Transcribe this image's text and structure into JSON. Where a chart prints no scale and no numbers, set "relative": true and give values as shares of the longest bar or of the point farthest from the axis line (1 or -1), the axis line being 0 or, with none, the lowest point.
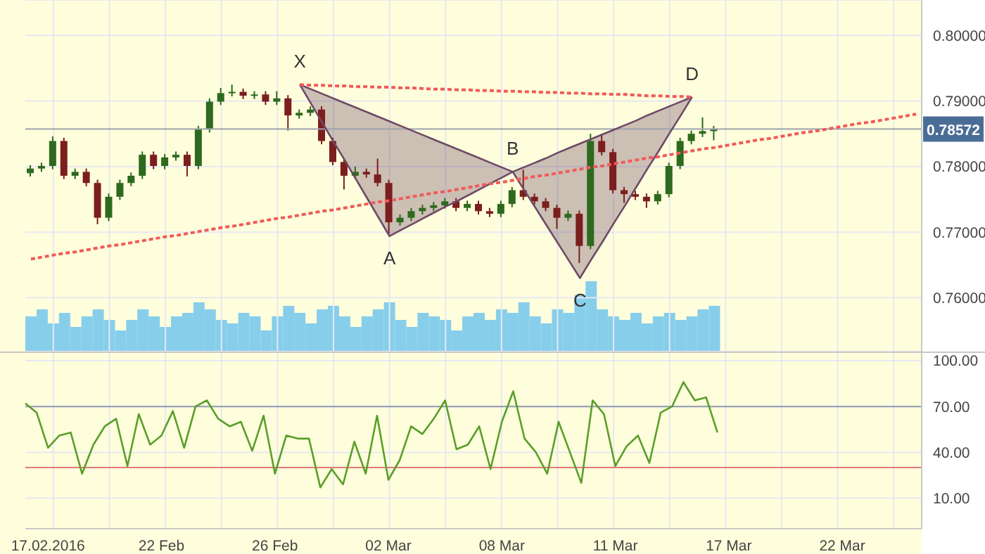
{
  "chart_data": [
    {
      "type": "candlestick",
      "ylim": [
        0.7518,
        0.8054
      ],
      "grid": true,
      "tick_labels": "y",
      "categories": [
        null,
        null,
        null,
        null,
        null,
        null,
        null,
        null,
        null,
        null,
        null,
        null,
        null,
        null,
        null,
        null,
        null,
        null,
        null,
        null,
        null,
        null,
        null,
        null,
        null,
        null,
        null,
        null,
        null,
        null,
        null,
        null,
        null,
        null,
        null,
        null,
        null,
        null,
        null,
        null,
        null,
        null,
        null,
        null,
        null,
        null,
        null,
        null,
        null,
        null,
        null,
        null,
        null,
        null,
        null,
        null,
        null,
        null,
        null,
        null,
        null,
        null,
        null,
        null,
        null,
        null,
        null,
        null,
        null,
        null,
        null,
        null,
        null,
        null,
        null,
        null,
        null,
        null,
        null,
        null
      ],
      "yticks": [
        {
          "value": 0.76,
          "label": "0.76000"
        },
        {
          "value": 0.77,
          "label": "0.77000"
        },
        {
          "value": 0.78,
          "label": "0.78000"
        },
        {
          "value": 0.79,
          "label": "0.79000"
        },
        {
          "value": 0.8,
          "label": "0.80000"
        }
      ],
      "ref_lines": [
        {
          "axis": "y",
          "value": 0.78572,
          "label": "0.78572",
          "color": "#9ea4ad"
        }
      ],
      "series": [
        {
          "type": "line",
          "color": "#6e4a66",
          "values": [
            null,
            null,
            null,
            null,
            null,
            null,
            null,
            null,
            null,
            null,
            null,
            null,
            null,
            null,
            null,
            null,
            null,
            null,
            null,
            null,
            null,
            null,
            null,
            null,
            0.7925,
            0.7896,
            0.7867,
            0.7838,
            0.781,
            0.7781,
            0.7752,
            0.7723,
            0.7694,
            0.7703,
            0.7712,
            0.7721,
            0.773,
            0.7739,
            0.7747,
            0.7756,
            0.7765,
            0.7774,
            0.7783,
            0.7792,
            0.7765,
            0.7738,
            0.7711,
            0.7684,
            0.7657,
            0.763,
            0.7658,
            0.7685,
            0.7713,
            0.774,
            0.7768,
            0.7796,
            0.7823,
            0.7851,
            0.7878,
            0.7906,
            null,
            null,
            null,
            null,
            null,
            null,
            null,
            null,
            null,
            null,
            null,
            null,
            null,
            null,
            null,
            null,
            null,
            null,
            null,
            null
          ],
          "lower": [
            null,
            null,
            null,
            null,
            null,
            null,
            null,
            null,
            null,
            null,
            null,
            null,
            null,
            null,
            null,
            null,
            null,
            null,
            null,
            null,
            null,
            null,
            null,
            null,
            0.7925,
            0.7896,
            0.7867,
            0.7838,
            0.781,
            0.7781,
            0.7752,
            0.7723,
            0.7694,
            0.7703,
            0.7712,
            0.7721,
            0.773,
            0.7739,
            0.7747,
            0.7756,
            0.7765,
            0.7774,
            0.7783,
            0.7792,
            0.7765,
            0.7738,
            0.7711,
            0.7684,
            0.7657,
            0.763,
            0.7658,
            0.7685,
            0.7713,
            0.774,
            0.7768,
            0.7796,
            0.7823,
            0.7851,
            0.7878,
            0.7906,
            null,
            null,
            null,
            null,
            null,
            null,
            null,
            null,
            null,
            null,
            null,
            null,
            null,
            null,
            null,
            null,
            null,
            null,
            null,
            null
          ],
          "upper": [
            null,
            null,
            null,
            null,
            null,
            null,
            null,
            null,
            null,
            null,
            null,
            null,
            null,
            null,
            null,
            null,
            null,
            null,
            null,
            null,
            null,
            null,
            null,
            null,
            0.7925,
            0.7918,
            0.7911,
            0.7904,
            0.7897,
            0.789,
            0.7883,
            0.7876,
            0.7869,
            0.7862,
            0.7855,
            0.7848,
            0.7841,
            0.7834,
            0.7827,
            0.782,
            0.7813,
            0.7806,
            0.7799,
            0.7792,
            0.7799,
            0.7806,
            0.7813,
            0.7821,
            0.7828,
            0.7835,
            0.7842,
            0.7849,
            0.7856,
            0.7863,
            0.787,
            0.7878,
            0.7885,
            0.7892,
            0.7899,
            0.7906,
            null,
            null,
            null,
            null,
            null,
            null,
            null,
            null,
            null,
            null,
            null,
            null,
            null,
            null,
            null,
            null,
            null,
            null,
            null,
            null
          ],
          "value_labels": [
            null,
            null,
            null,
            null,
            null,
            null,
            null,
            null,
            null,
            null,
            null,
            null,
            null,
            null,
            null,
            null,
            null,
            null,
            null,
            null,
            null,
            null,
            null,
            null,
            "X",
            null,
            null,
            null,
            null,
            null,
            null,
            null,
            "A",
            null,
            null,
            null,
            null,
            null,
            null,
            null,
            null,
            null,
            null,
            "B",
            null,
            null,
            null,
            null,
            null,
            "C",
            null,
            null,
            null,
            null,
            null,
            null,
            null,
            null,
            null,
            "D",
            null,
            null,
            null,
            null,
            null,
            null,
            null,
            null,
            null,
            null,
            null,
            null,
            null,
            null,
            null,
            null,
            null,
            null,
            null,
            null
          ]
        },
        {
          "type": "line",
          "color": "#6e4a66",
          "values": [
            null,
            null,
            null,
            null,
            null,
            null,
            null,
            null,
            null,
            null,
            null,
            null,
            null,
            null,
            null,
            null,
            null,
            null,
            null,
            null,
            null,
            null,
            null,
            null,
            0.7925,
            0.7918,
            0.7911,
            0.7904,
            0.7897,
            0.789,
            0.7883,
            0.7876,
            0.7869,
            0.7862,
            0.7855,
            0.7848,
            0.7841,
            0.7834,
            0.7827,
            0.782,
            0.7813,
            0.7806,
            0.7799,
            0.7792,
            0.7799,
            0.7806,
            0.7813,
            0.7821,
            0.7828,
            0.7835,
            0.7842,
            0.7849,
            0.7856,
            0.7863,
            0.787,
            0.7878,
            0.7885,
            0.7892,
            0.7899,
            0.7906,
            null,
            null,
            null,
            null,
            null,
            null,
            null,
            null,
            null,
            null,
            null,
            null,
            null,
            null,
            null,
            null,
            null,
            null,
            null,
            null
          ]
        },
        {
          "type": "line",
          "color": "#f05a5a",
          "line_style": "dotted",
          "values": [
            0.7659,
            0.7662,
            0.7665,
            0.7668,
            0.767,
            0.7673,
            0.7676,
            0.7679,
            0.7681,
            0.7684,
            0.7687,
            0.769,
            0.7693,
            0.7695,
            0.7698,
            0.7701,
            0.7704,
            0.7707,
            0.7709,
            0.7712,
            0.7715,
            0.7718,
            0.7721,
            0.7723,
            0.7726,
            0.7729,
            0.7732,
            0.7734,
            0.7737,
            0.774,
            0.7743,
            0.7746,
            0.7748,
            0.7751,
            0.7754,
            0.7757,
            0.776,
            0.7762,
            0.7765,
            0.7768,
            0.7771,
            0.7774,
            0.7776,
            0.7779,
            0.7782,
            0.7785,
            0.7787,
            0.779,
            0.7793,
            0.7796,
            0.7799,
            0.7801,
            0.7804,
            0.7807,
            0.781,
            0.7813,
            0.7815,
            0.7818,
            0.7821,
            0.7824,
            0.7827,
            0.7829,
            0.7832,
            0.7835,
            0.7838,
            0.7841,
            0.7843,
            0.7846,
            0.7849,
            0.7852,
            0.7854,
            0.7857,
            0.786,
            0.7863,
            0.7866,
            0.7868,
            0.7871,
            0.7874,
            0.7877,
            0.788
          ]
        },
        {
          "type": "line",
          "color": "#f05a5a",
          "line_style": "dotted",
          "values": [
            null,
            null,
            null,
            null,
            null,
            null,
            null,
            null,
            null,
            null,
            null,
            null,
            null,
            null,
            null,
            null,
            null,
            null,
            null,
            null,
            null,
            null,
            null,
            null,
            0.7925,
            0.7924,
            0.7924,
            0.7923,
            0.7923,
            0.7922,
            0.7922,
            0.7921,
            0.7921,
            0.792,
            0.792,
            0.7919,
            0.7918,
            0.7918,
            0.7917,
            0.7917,
            0.7916,
            0.7916,
            0.7915,
            0.7915,
            0.7914,
            0.7914,
            0.7913,
            0.7913,
            0.7912,
            0.7912,
            0.7911,
            0.7911,
            0.791,
            0.791,
            0.7909,
            0.7908,
            0.7908,
            0.7907,
            0.7907,
            0.7906,
            null,
            null,
            null,
            null,
            null,
            null,
            null,
            null,
            null,
            null,
            null,
            null,
            null,
            null,
            null,
            null,
            null,
            null,
            null,
            null
          ]
        },
        {
          "ohlc": [
            [
              0.779,
              0.7802,
              0.7785,
              0.7797
            ],
            [
              0.7797,
              0.7806,
              0.7792,
              0.7801
            ],
            [
              0.7801,
              0.7846,
              0.7796,
              0.7839
            ],
            [
              0.7839,
              0.7844,
              0.7781,
              0.7786
            ],
            [
              0.7786,
              0.7797,
              0.7781,
              0.7792
            ],
            [
              0.7792,
              0.7797,
              0.777,
              0.7775
            ],
            [
              0.7775,
              0.778,
              0.7712,
              0.7722
            ],
            [
              0.7722,
              0.7759,
              0.7717,
              0.7754
            ],
            [
              0.7754,
              0.778,
              0.7749,
              0.7775
            ],
            [
              0.7775,
              0.7791,
              0.777,
              0.7786
            ],
            [
              0.7786,
              0.7823,
              0.7781,
              0.7818
            ],
            [
              0.7818,
              0.7823,
              0.7796,
              0.7801
            ],
            [
              0.7801,
              0.7819,
              0.7796,
              0.7814
            ],
            [
              0.7814,
              0.7823,
              0.7809,
              0.7818
            ],
            [
              0.7818,
              0.7823,
              0.7785,
              0.7801
            ],
            [
              0.7801,
              0.7862,
              0.7796,
              0.7857
            ],
            [
              0.7857,
              0.7904,
              0.7852,
              0.7899
            ],
            [
              0.7899,
              0.792,
              0.7894,
              0.7912
            ],
            [
              0.7912,
              0.7925,
              0.7907,
              0.7914
            ],
            [
              0.7914,
              0.7919,
              0.7903,
              0.7908
            ],
            [
              0.7908,
              0.7915,
              0.7903,
              0.791
            ],
            [
              0.791,
              0.7915,
              0.7894,
              0.7899
            ],
            [
              0.7899,
              0.7915,
              0.7894,
              0.7904
            ],
            [
              0.7904,
              0.7909,
              0.7855,
              0.7878
            ],
            [
              0.7878,
              0.7887,
              0.7873,
              0.7882
            ],
            [
              0.7882,
              0.7892,
              0.7877,
              0.7887
            ],
            [
              0.7887,
              0.7892,
              0.7834,
              0.7839
            ],
            [
              0.7839,
              0.7844,
              0.7802,
              0.7807
            ],
            [
              0.7807,
              0.7812,
              0.7765,
              0.7786
            ],
            [
              0.7786,
              0.78,
              0.7781,
              0.7792
            ],
            [
              0.7792,
              0.7797,
              0.7783,
              0.7788
            ],
            [
              0.7788,
              0.7812,
              0.777,
              0.7775
            ],
            [
              0.7775,
              0.778,
              0.7697,
              0.7715
            ],
            [
              0.7715,
              0.7727,
              0.771,
              0.7722
            ],
            [
              0.7722,
              0.7737,
              0.7717,
              0.7732
            ],
            [
              0.7732,
              0.7742,
              0.7727,
              0.7737
            ],
            [
              0.7737,
              0.7746,
              0.7732,
              0.7741
            ],
            [
              0.7741,
              0.7752,
              0.7736,
              0.7747
            ],
            [
              0.7747,
              0.7752,
              0.7732,
              0.7737
            ],
            [
              0.7737,
              0.7748,
              0.7732,
              0.7743
            ],
            [
              0.7743,
              0.7748,
              0.7727,
              0.7732
            ],
            [
              0.7732,
              0.7737,
              0.7723,
              0.7728
            ],
            [
              0.7728,
              0.7748,
              0.7723,
              0.7743
            ],
            [
              0.7743,
              0.7769,
              0.7738,
              0.7764
            ],
            [
              0.7764,
              0.7795,
              0.7749,
              0.7754
            ],
            [
              0.7754,
              0.7759,
              0.7742,
              0.7747
            ],
            [
              0.7747,
              0.7752,
              0.7732,
              0.7737
            ],
            [
              0.7737,
              0.7742,
              0.7705,
              0.7722
            ],
            [
              0.7722,
              0.7733,
              0.7717,
              0.7728
            ],
            [
              0.7728,
              0.7733,
              0.7653,
              0.7679
            ],
            [
              0.7679,
              0.785,
              0.7674,
              0.7839
            ],
            [
              0.7839,
              0.785,
              0.7817,
              0.7822
            ],
            [
              0.7822,
              0.7827,
              0.7759,
              0.7764
            ],
            [
              0.7764,
              0.7769,
              0.7745,
              0.7758
            ],
            [
              0.7758,
              0.7763,
              0.7749,
              0.7754
            ],
            [
              0.7754,
              0.7759,
              0.7737,
              0.7747
            ],
            [
              0.7747,
              0.7763,
              0.7742,
              0.7758
            ],
            [
              0.7758,
              0.7806,
              0.7753,
              0.7801
            ],
            [
              0.7801,
              0.7844,
              0.7796,
              0.7839
            ],
            [
              0.7839,
              0.7855,
              0.7834,
              0.785
            ],
            [
              0.785,
              0.7875,
              0.7845,
              0.7854
            ],
            [
              0.7854,
              0.7862,
              0.784,
              0.7857
            ],
            null,
            null,
            null,
            null,
            null,
            null,
            null,
            null,
            null,
            null,
            null,
            null,
            null,
            null,
            null,
            null,
            null,
            null
          ],
          "colors": [
            "#2d6a1f",
            "#2d6a1f",
            "#2d6a1f",
            "#7b1e1e",
            "#2d6a1f",
            "#7b1e1e",
            "#7b1e1e",
            "#2d6a1f",
            "#2d6a1f",
            "#2d6a1f",
            "#2d6a1f",
            "#7b1e1e",
            "#2d6a1f",
            "#2d6a1f",
            "#7b1e1e",
            "#2d6a1f",
            "#2d6a1f",
            "#2d6a1f",
            "#2d6a1f",
            "#7b1e1e",
            "#2d6a1f",
            "#7b1e1e",
            "#2d6a1f",
            "#7b1e1e",
            "#2d6a1f",
            "#2d6a1f",
            "#7b1e1e",
            "#7b1e1e",
            "#7b1e1e",
            "#2d6a1f",
            "#7b1e1e",
            "#7b1e1e",
            "#7b1e1e",
            "#2d6a1f",
            "#2d6a1f",
            "#2d6a1f",
            "#2d6a1f",
            "#2d6a1f",
            "#7b1e1e",
            "#2d6a1f",
            "#7b1e1e",
            "#7b1e1e",
            "#2d6a1f",
            "#2d6a1f",
            "#7b1e1e",
            "#7b1e1e",
            "#7b1e1e",
            "#7b1e1e",
            "#2d6a1f",
            "#7b1e1e",
            "#2d6a1f",
            "#7b1e1e",
            "#7b1e1e",
            "#7b1e1e",
            "#7b1e1e",
            "#7b1e1e",
            "#2d6a1f",
            "#2d6a1f",
            "#2d6a1f",
            "#2d6a1f",
            "#2d6a1f",
            "#2d6a1f",
            null,
            null,
            null,
            null,
            null,
            null,
            null,
            null,
            null,
            null,
            null,
            null,
            null,
            null,
            null,
            null,
            null,
            null
          ]
        }
      ]
    },
    {
      "type": "bar",
      "relative": true,
      "tick_labels": false,
      "color": "#87ceeb",
      "categories": [
        null,
        null,
        null,
        null,
        null,
        null,
        null,
        null,
        null,
        null,
        null,
        null,
        null,
        null,
        null,
        null,
        null,
        null,
        null,
        null,
        null,
        null,
        null,
        null,
        null,
        null,
        null,
        null,
        null,
        null,
        null,
        null,
        null,
        null,
        null,
        null,
        null,
        null,
        null,
        null,
        null,
        null,
        null,
        null,
        null,
        null,
        null,
        null,
        null,
        null,
        null,
        null,
        null,
        null,
        null,
        null,
        null,
        null,
        null,
        null,
        null,
        null,
        null,
        null,
        null,
        null,
        null,
        null,
        null,
        null,
        null,
        null,
        null,
        null,
        null,
        null,
        null,
        null,
        null,
        null
      ],
      "values": [
        0.5,
        0.6,
        0.4,
        0.55,
        0.35,
        0.5,
        0.6,
        0.45,
        0.3,
        0.45,
        0.6,
        0.5,
        0.35,
        0.5,
        0.55,
        0.7,
        0.6,
        0.45,
        0.4,
        0.55,
        0.5,
        0.3,
        0.5,
        0.65,
        0.55,
        0.4,
        0.6,
        0.65,
        0.5,
        0.35,
        0.5,
        0.6,
        0.7,
        0.45,
        0.35,
        0.55,
        0.5,
        0.45,
        0.3,
        0.5,
        0.55,
        0.45,
        0.6,
        0.55,
        0.7,
        0.5,
        0.4,
        0.6,
        0.55,
        0.8,
        1,
        0.6,
        0.5,
        0.45,
        0.55,
        0.4,
        0.5,
        0.55,
        0.45,
        0.5,
        0.6,
        0.65,
        null,
        null,
        null,
        null,
        null,
        null,
        null,
        null,
        null,
        null,
        null,
        null,
        null,
        null,
        null,
        null,
        null,
        null
      ]
    },
    {
      "type": "line",
      "color": "#5a9e2a",
      "grid": true,
      "ylim": [
        -10,
        106
      ],
      "categories": [
        null,
        null,
        "17.02.2016",
        null,
        null,
        null,
        null,
        null,
        null,
        null,
        null,
        null,
        "22 Feb",
        null,
        null,
        null,
        null,
        null,
        null,
        null,
        null,
        null,
        "26 Feb",
        null,
        null,
        null,
        null,
        null,
        null,
        null,
        null,
        null,
        "02 Mar",
        null,
        null,
        null,
        null,
        null,
        null,
        null,
        null,
        null,
        "08 Mar",
        null,
        null,
        null,
        null,
        null,
        null,
        null,
        null,
        null,
        "11 Mar",
        null,
        null,
        null,
        null,
        null,
        null,
        null,
        null,
        null,
        "17 Mar",
        null,
        null,
        null,
        null,
        null,
        null,
        null,
        null,
        null,
        "22 Mar",
        null,
        null,
        null,
        null,
        null,
        null,
        null
      ],
      "yticks": [
        {
          "value": 10,
          "label": "10.00"
        },
        {
          "value": 40,
          "label": "40.00"
        },
        {
          "value": 70,
          "label": "70.00"
        },
        {
          "value": 100,
          "label": "100.00"
        }
      ],
      "ref_lines": [
        {
          "axis": "y",
          "value": 70,
          "color": "#8f9ab0"
        },
        {
          "axis": "y",
          "value": 30,
          "color": "#e07a7a"
        }
      ],
      "values": [
        72,
        66,
        43,
        51,
        53,
        26,
        45,
        57,
        62,
        31,
        65,
        45,
        51,
        67,
        43,
        70,
        74,
        62,
        57,
        60,
        41,
        64,
        26,
        51,
        49,
        49,
        17,
        29,
        19,
        47,
        26,
        64,
        22,
        35,
        57,
        52,
        62,
        74,
        42,
        45,
        57,
        29,
        60,
        80,
        49,
        40,
        26,
        60,
        40,
        20,
        74,
        65,
        31,
        44,
        51,
        33,
        66,
        70,
        86,
        74,
        76,
        53,
        null,
        null,
        null,
        null,
        null,
        null,
        null,
        null,
        null,
        null,
        null,
        null,
        null,
        null,
        null,
        null,
        null,
        null
      ]
    }
  ]
}
